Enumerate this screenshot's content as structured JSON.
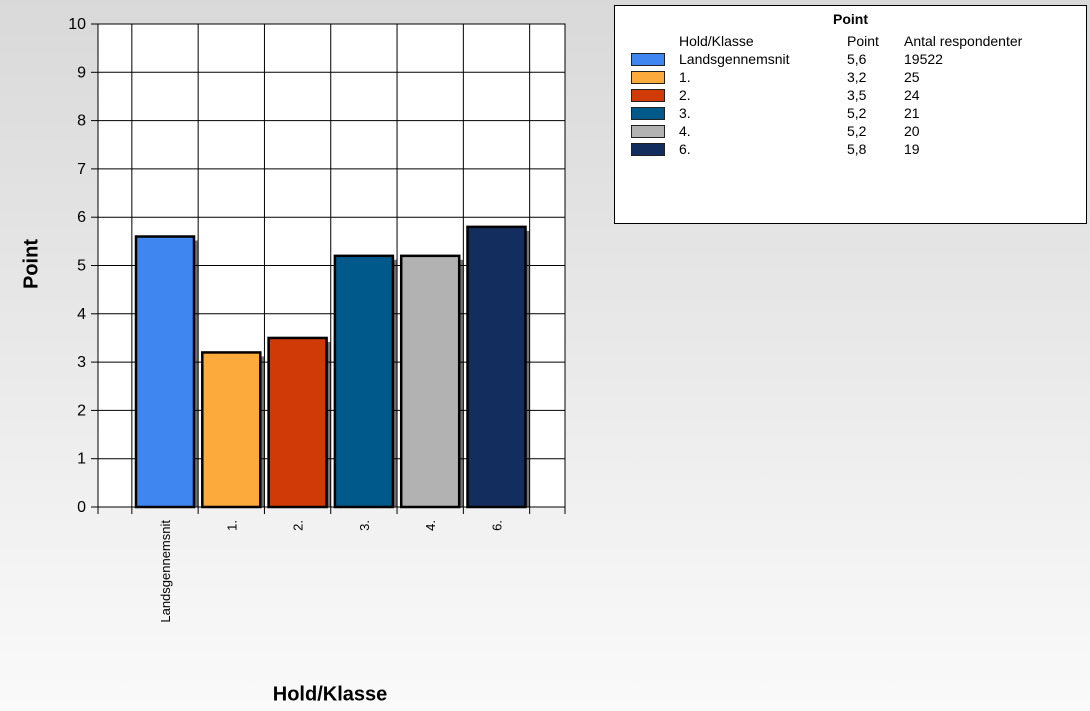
{
  "chart_data": {
    "type": "bar",
    "title": "",
    "xlabel": "Hold/Klasse",
    "ylabel": "Point",
    "ylim": [
      0,
      10
    ],
    "yticks": [
      0,
      1,
      2,
      3,
      4,
      5,
      6,
      7,
      8,
      9,
      10
    ],
    "grid": true,
    "legend_position": "top-right",
    "categories": [
      "Landsgennemsnit",
      "1.",
      "2.",
      "3.",
      "4.",
      "6."
    ],
    "values": [
      5.6,
      3.2,
      3.5,
      5.2,
      5.2,
      5.8
    ],
    "colors": [
      "#3f86f0",
      "#fdaa3c",
      "#cf3a06",
      "#00598b",
      "#b2b2b2",
      "#132d5e"
    ]
  },
  "legend": {
    "title": "Point",
    "headers": {
      "name": "Hold/Klasse",
      "point": "Point",
      "antal": "Antal respondenter"
    },
    "rows": [
      {
        "name": "Landsgennemsnit",
        "point": "5,6",
        "antal": "19522",
        "color": "#3f86f0"
      },
      {
        "name": "1.",
        "point": "3,2",
        "antal": "25",
        "color": "#fdaa3c"
      },
      {
        "name": "2.",
        "point": "3,5",
        "antal": "24",
        "color": "#cf3a06"
      },
      {
        "name": "3.",
        "point": "5,2",
        "antal": "21",
        "color": "#00598b"
      },
      {
        "name": "4.",
        "point": "5,2",
        "antal": "20",
        "color": "#b2b2b2"
      },
      {
        "name": "6.",
        "point": "5,8",
        "antal": "19",
        "color": "#132d5e"
      }
    ]
  }
}
